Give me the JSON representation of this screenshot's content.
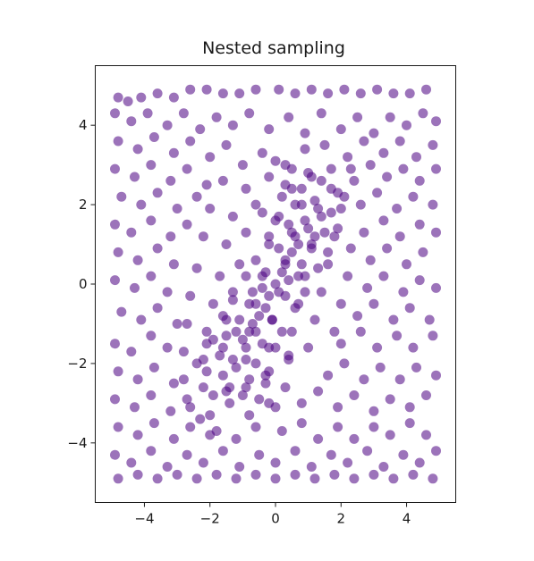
{
  "chart_data": {
    "type": "scatter",
    "title": "Nested sampling",
    "xlabel": "",
    "ylabel": "",
    "xlim": [
      -5.5,
      5.5
    ],
    "ylim": [
      -5.5,
      5.5
    ],
    "xticks": [
      -4,
      -2,
      0,
      2,
      4
    ],
    "yticks": [
      -4,
      -2,
      0,
      2,
      4
    ],
    "xtick_labels": [
      "−4",
      "−2",
      "0",
      "2",
      "4"
    ],
    "ytick_labels": [
      "−4",
      "−2",
      "0",
      "2",
      "4"
    ],
    "grid": false,
    "marker_color": "#4b0082",
    "marker_alpha": 0.55,
    "points_note_unit": "data units",
    "points": [
      [
        -4.8,
        4.7
      ],
      [
        -4.5,
        4.6
      ],
      [
        -4.1,
        4.7
      ],
      [
        -3.6,
        4.8
      ],
      [
        -3.1,
        4.7
      ],
      [
        -2.6,
        4.9
      ],
      [
        -2.1,
        4.9
      ],
      [
        -1.6,
        4.8
      ],
      [
        -1.1,
        4.8
      ],
      [
        -0.6,
        4.9
      ],
      [
        0.1,
        4.9
      ],
      [
        0.6,
        4.8
      ],
      [
        1.1,
        4.9
      ],
      [
        1.6,
        4.8
      ],
      [
        2.1,
        4.9
      ],
      [
        2.6,
        4.8
      ],
      [
        3.1,
        4.9
      ],
      [
        3.6,
        4.8
      ],
      [
        4.1,
        4.8
      ],
      [
        4.6,
        4.9
      ],
      [
        -4.9,
        4.3
      ],
      [
        -4.4,
        4.1
      ],
      [
        -3.9,
        4.3
      ],
      [
        -3.3,
        4.0
      ],
      [
        -2.8,
        4.3
      ],
      [
        -2.3,
        3.9
      ],
      [
        -1.8,
        4.2
      ],
      [
        -1.3,
        4.0
      ],
      [
        -0.8,
        4.3
      ],
      [
        -0.2,
        3.9
      ],
      [
        0.4,
        4.2
      ],
      [
        0.9,
        3.8
      ],
      [
        1.4,
        4.3
      ],
      [
        2.0,
        3.9
      ],
      [
        2.5,
        4.2
      ],
      [
        3.0,
        3.8
      ],
      [
        3.5,
        4.2
      ],
      [
        4.0,
        4.0
      ],
      [
        4.5,
        4.3
      ],
      [
        4.9,
        4.1
      ],
      [
        -4.8,
        3.6
      ],
      [
        -4.2,
        3.4
      ],
      [
        -3.7,
        3.7
      ],
      [
        -3.1,
        3.3
      ],
      [
        -2.6,
        3.6
      ],
      [
        -2.0,
        3.2
      ],
      [
        -1.5,
        3.5
      ],
      [
        1.5,
        3.5
      ],
      [
        2.2,
        3.2
      ],
      [
        2.7,
        3.6
      ],
      [
        3.3,
        3.3
      ],
      [
        3.8,
        3.6
      ],
      [
        4.3,
        3.2
      ],
      [
        4.8,
        3.5
      ],
      [
        -4.9,
        2.9
      ],
      [
        -4.3,
        2.7
      ],
      [
        -3.8,
        3.0
      ],
      [
        -3.2,
        2.6
      ],
      [
        -2.7,
        2.9
      ],
      [
        -2.1,
        2.5
      ],
      [
        2.4,
        2.6
      ],
      [
        2.9,
        3.0
      ],
      [
        3.4,
        2.7
      ],
      [
        3.9,
        2.9
      ],
      [
        4.4,
        2.6
      ],
      [
        4.9,
        2.9
      ],
      [
        -4.7,
        2.2
      ],
      [
        -4.1,
        2.0
      ],
      [
        -3.6,
        2.3
      ],
      [
        -3.0,
        1.9
      ],
      [
        -2.4,
        2.2
      ],
      [
        2.6,
        2.0
      ],
      [
        3.1,
        2.3
      ],
      [
        3.7,
        1.9
      ],
      [
        4.2,
        2.2
      ],
      [
        4.8,
        2.0
      ],
      [
        -4.9,
        1.5
      ],
      [
        -4.4,
        1.3
      ],
      [
        -3.8,
        1.6
      ],
      [
        -3.2,
        1.2
      ],
      [
        -2.7,
        1.5
      ],
      [
        2.7,
        1.3
      ],
      [
        3.3,
        1.6
      ],
      [
        3.8,
        1.2
      ],
      [
        4.4,
        1.5
      ],
      [
        4.9,
        1.3
      ],
      [
        -4.8,
        0.8
      ],
      [
        -4.2,
        0.6
      ],
      [
        -3.6,
        0.9
      ],
      [
        -3.1,
        0.5
      ],
      [
        2.9,
        0.6
      ],
      [
        3.4,
        0.9
      ],
      [
        4.0,
        0.5
      ],
      [
        4.5,
        0.8
      ],
      [
        -4.9,
        0.1
      ],
      [
        -4.3,
        -0.1
      ],
      [
        -3.8,
        0.2
      ],
      [
        -3.3,
        -0.2
      ],
      [
        2.8,
        -0.1
      ],
      [
        3.3,
        0.2
      ],
      [
        3.9,
        -0.2
      ],
      [
        4.4,
        0.1
      ],
      [
        4.9,
        -0.1
      ],
      [
        -4.7,
        -0.7
      ],
      [
        -4.1,
        -0.9
      ],
      [
        -3.6,
        -0.6
      ],
      [
        -3.0,
        -1.0
      ],
      [
        2.5,
        -0.8
      ],
      [
        3.0,
        -0.5
      ],
      [
        3.6,
        -0.9
      ],
      [
        4.1,
        -0.6
      ],
      [
        4.7,
        -0.9
      ],
      [
        -4.9,
        -1.5
      ],
      [
        -4.4,
        -1.7
      ],
      [
        -3.8,
        -1.3
      ],
      [
        -3.3,
        -1.6
      ],
      [
        2.0,
        -1.5
      ],
      [
        2.6,
        -1.2
      ],
      [
        3.1,
        -1.6
      ],
      [
        3.7,
        -1.3
      ],
      [
        4.2,
        -1.6
      ],
      [
        4.8,
        -1.3
      ],
      [
        -4.8,
        -2.2
      ],
      [
        -4.2,
        -2.4
      ],
      [
        -3.7,
        -2.1
      ],
      [
        -3.1,
        -2.5
      ],
      [
        1.6,
        -2.3
      ],
      [
        2.1,
        -2.0
      ],
      [
        2.7,
        -2.4
      ],
      [
        3.2,
        -2.1
      ],
      [
        3.8,
        -2.4
      ],
      [
        4.3,
        -2.1
      ],
      [
        4.9,
        -2.3
      ],
      [
        -4.9,
        -2.9
      ],
      [
        -4.3,
        -3.1
      ],
      [
        -3.8,
        -2.8
      ],
      [
        -3.2,
        -3.2
      ],
      [
        -2.7,
        -2.9
      ],
      [
        0.8,
        -3.0
      ],
      [
        1.3,
        -2.7
      ],
      [
        1.9,
        -3.1
      ],
      [
        2.4,
        -2.8
      ],
      [
        3.0,
        -3.2
      ],
      [
        3.5,
        -2.9
      ],
      [
        4.1,
        -3.1
      ],
      [
        4.6,
        -2.8
      ],
      [
        -4.8,
        -3.6
      ],
      [
        -4.2,
        -3.8
      ],
      [
        -3.7,
        -3.5
      ],
      [
        -3.1,
        -3.9
      ],
      [
        -2.6,
        -3.6
      ],
      [
        -2.0,
        -3.8
      ],
      [
        0.2,
        -3.7
      ],
      [
        0.8,
        -3.5
      ],
      [
        1.3,
        -3.9
      ],
      [
        1.9,
        -3.6
      ],
      [
        2.4,
        -3.9
      ],
      [
        3.0,
        -3.6
      ],
      [
        3.5,
        -3.8
      ],
      [
        4.1,
        -3.5
      ],
      [
        4.6,
        -3.8
      ],
      [
        -4.9,
        -4.3
      ],
      [
        -4.4,
        -4.5
      ],
      [
        -3.8,
        -4.2
      ],
      [
        -3.3,
        -4.6
      ],
      [
        -2.7,
        -4.3
      ],
      [
        -2.2,
        -4.5
      ],
      [
        -1.6,
        -4.2
      ],
      [
        -1.1,
        -4.6
      ],
      [
        -0.5,
        -4.3
      ],
      [
        0.0,
        -4.5
      ],
      [
        0.6,
        -4.2
      ],
      [
        1.1,
        -4.6
      ],
      [
        1.7,
        -4.3
      ],
      [
        2.2,
        -4.5
      ],
      [
        2.8,
        -4.2
      ],
      [
        3.3,
        -4.6
      ],
      [
        3.9,
        -4.3
      ],
      [
        4.4,
        -4.5
      ],
      [
        4.9,
        -4.2
      ],
      [
        -4.8,
        -4.9
      ],
      [
        -4.2,
        -4.8
      ],
      [
        -3.6,
        -4.9
      ],
      [
        -3.0,
        -4.8
      ],
      [
        -2.4,
        -4.9
      ],
      [
        -1.8,
        -4.8
      ],
      [
        -1.2,
        -4.9
      ],
      [
        -0.6,
        -4.8
      ],
      [
        0.0,
        -4.9
      ],
      [
        0.6,
        -4.8
      ],
      [
        1.2,
        -4.9
      ],
      [
        1.8,
        -4.8
      ],
      [
        2.4,
        -4.9
      ],
      [
        3.0,
        -4.8
      ],
      [
        3.6,
        -4.9
      ],
      [
        4.2,
        -4.8
      ],
      [
        4.8,
        -4.9
      ],
      [
        -1.0,
        3.0
      ],
      [
        -0.4,
        3.3
      ],
      [
        0.3,
        3.0
      ],
      [
        0.9,
        3.4
      ],
      [
        -1.6,
        2.6
      ],
      [
        -0.9,
        2.4
      ],
      [
        -0.2,
        2.7
      ],
      [
        0.5,
        2.4
      ],
      [
        1.1,
        2.7
      ],
      [
        1.7,
        2.4
      ],
      [
        -2.0,
        1.9
      ],
      [
        -1.3,
        1.7
      ],
      [
        -0.6,
        2.0
      ],
      [
        0.1,
        1.7
      ],
      [
        0.8,
        2.0
      ],
      [
        1.4,
        1.7
      ],
      [
        2.0,
        1.9
      ],
      [
        -2.2,
        1.2
      ],
      [
        -1.5,
        1.0
      ],
      [
        -0.9,
        1.3
      ],
      [
        -0.2,
        1.0
      ],
      [
        0.5,
        1.3
      ],
      [
        1.1,
        1.0
      ],
      [
        1.8,
        1.2
      ],
      [
        2.3,
        0.9
      ],
      [
        -2.4,
        0.4
      ],
      [
        -1.7,
        0.2
      ],
      [
        -1.1,
        0.5
      ],
      [
        -0.4,
        0.2
      ],
      [
        0.3,
        0.5
      ],
      [
        0.9,
        0.2
      ],
      [
        1.6,
        0.5
      ],
      [
        2.2,
        0.2
      ],
      [
        -2.6,
        -0.3
      ],
      [
        -1.9,
        -0.5
      ],
      [
        -1.3,
        -0.2
      ],
      [
        -0.6,
        -0.5
      ],
      [
        0.1,
        -0.2
      ],
      [
        0.7,
        -0.5
      ],
      [
        1.4,
        -0.2
      ],
      [
        2.0,
        -0.5
      ],
      [
        -2.7,
        -1.0
      ],
      [
        -2.1,
        -1.2
      ],
      [
        -1.5,
        -0.9
      ],
      [
        -0.8,
        -1.2
      ],
      [
        -0.1,
        -0.9
      ],
      [
        0.5,
        -1.2
      ],
      [
        1.2,
        -0.9
      ],
      [
        1.8,
        -1.2
      ],
      [
        -2.8,
        -1.7
      ],
      [
        -2.2,
        -1.9
      ],
      [
        -1.6,
        -1.6
      ],
      [
        -0.9,
        -1.9
      ],
      [
        -0.2,
        -1.6
      ],
      [
        0.4,
        -1.9
      ],
      [
        1.0,
        -1.6
      ],
      [
        -2.8,
        -2.4
      ],
      [
        -2.2,
        -2.6
      ],
      [
        -1.6,
        -2.3
      ],
      [
        -0.9,
        -2.6
      ],
      [
        -0.3,
        -2.3
      ],
      [
        0.3,
        -2.6
      ],
      [
        -2.6,
        -3.1
      ],
      [
        -2.0,
        -3.3
      ],
      [
        -1.4,
        -3.0
      ],
      [
        -0.8,
        -3.3
      ],
      [
        -0.2,
        -3.0
      ],
      [
        -1.8,
        -3.7
      ],
      [
        -1.2,
        -3.9
      ],
      [
        -0.6,
        -3.6
      ],
      [
        0.0,
        0.0
      ],
      [
        0.3,
        0.6
      ],
      [
        -0.3,
        -0.6
      ],
      [
        0.6,
        1.2
      ],
      [
        -0.6,
        -1.2
      ],
      [
        0.9,
        1.6
      ],
      [
        -0.9,
        -1.6
      ],
      [
        1.2,
        2.1
      ],
      [
        -1.2,
        -2.1
      ],
      [
        1.4,
        2.6
      ],
      [
        -1.4,
        -2.6
      ],
      [
        0.2,
        0.3
      ],
      [
        -0.2,
        -0.3
      ],
      [
        0.5,
        0.8
      ],
      [
        -0.5,
        -0.8
      ],
      [
        0.7,
        1.0
      ],
      [
        -0.7,
        -1.0
      ],
      [
        1.0,
        1.4
      ],
      [
        -1.0,
        -1.4
      ],
      [
        1.3,
        1.9
      ],
      [
        -1.3,
        -1.9
      ],
      [
        0.4,
        0.1
      ],
      [
        -0.4,
        -0.1
      ],
      [
        0.8,
        0.5
      ],
      [
        -0.8,
        -0.5
      ],
      [
        1.1,
        0.9
      ],
      [
        -1.1,
        -0.9
      ],
      [
        1.5,
        1.3
      ],
      [
        -1.5,
        -1.3
      ],
      [
        1.7,
        1.8
      ],
      [
        -1.7,
        -1.8
      ],
      [
        0.1,
        0.9
      ],
      [
        -0.1,
        -0.9
      ],
      [
        0.4,
        1.5
      ],
      [
        -0.4,
        -1.5
      ],
      [
        0.6,
        2.0
      ],
      [
        -0.6,
        -2.0
      ],
      [
        0.8,
        2.4
      ],
      [
        -0.8,
        -2.4
      ],
      [
        0.5,
        2.9
      ],
      [
        -0.5,
        -2.9
      ],
      [
        -0.3,
        0.3
      ],
      [
        0.3,
        -0.3
      ],
      [
        -0.6,
        0.6
      ],
      [
        0.6,
        -0.6
      ],
      [
        -0.2,
        1.2
      ],
      [
        0.2,
        -1.2
      ],
      [
        -0.9,
        0.2
      ],
      [
        0.9,
        -0.2
      ],
      [
        -0.4,
        1.8
      ],
      [
        0.4,
        -1.8
      ],
      [
        1.6,
        0.8
      ],
      [
        -1.6,
        -0.8
      ],
      [
        1.9,
        1.4
      ],
      [
        -1.9,
        -1.4
      ],
      [
        2.1,
        2.2
      ],
      [
        -2.1,
        -2.2
      ],
      [
        1.3,
        0.4
      ],
      [
        -1.3,
        -0.4
      ],
      [
        0.2,
        2.2
      ],
      [
        -0.2,
        -2.2
      ],
      [
        0.0,
        1.6
      ],
      [
        0.0,
        -1.6
      ],
      [
        0.7,
        0.2
      ],
      [
        -0.7,
        -0.2
      ],
      [
        1.2,
        1.2
      ],
      [
        -1.2,
        -1.2
      ],
      [
        0.3,
        2.5
      ],
      [
        -0.3,
        -2.5
      ],
      [
        1.0,
        2.8
      ],
      [
        -1.0,
        -2.8
      ],
      [
        -1.9,
        -2.8
      ],
      [
        -2.3,
        -3.4
      ],
      [
        -1.5,
        -2.7
      ],
      [
        1.7,
        2.9
      ],
      [
        1.9,
        2.3
      ],
      [
        2.3,
        2.9
      ],
      [
        -2.1,
        -1.5
      ],
      [
        -2.4,
        -2.0
      ],
      [
        0.0,
        3.1
      ],
      [
        0.0,
        -3.1
      ]
    ]
  }
}
